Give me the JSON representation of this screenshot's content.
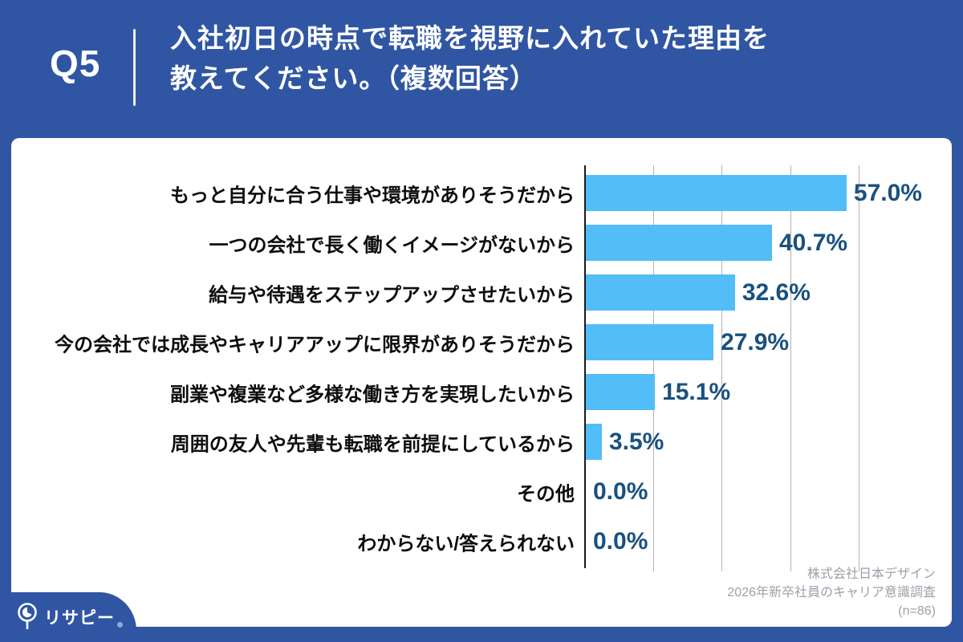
{
  "header": {
    "question_no": "Q5",
    "title_line1": "入社初日の時点で転職を視野に入れていた理由を",
    "title_line2": "教えてください。（複数回答）"
  },
  "chart_data": {
    "type": "bar",
    "orientation": "horizontal",
    "title": "入社初日の時点で転職を視野に入れていた理由を教えてください。（複数回答）",
    "categories": [
      "もっと自分に合う仕事や環境がありそうだから",
      "一つの会社で長く働くイメージがないから",
      "給与や待遇をステップアップさせたいから",
      "今の会社では成長やキャリアアップに限界がありそうだから",
      "副業や複業など多様な働き方を実現したいから",
      "周囲の友人や先輩も転職を前提にしているから",
      "その他",
      "わからない/答えられない"
    ],
    "values": [
      57.0,
      40.7,
      32.6,
      27.9,
      15.1,
      3.5,
      0.0,
      0.0
    ],
    "value_labels": [
      "57.0%",
      "40.7%",
      "32.6%",
      "27.9%",
      "15.1%",
      "3.5%",
      "0.0%",
      "0.0%"
    ],
    "xlim": [
      0,
      74
    ],
    "gridlines_pct": [
      15,
      30,
      45,
      60
    ],
    "grid": "vertical-only",
    "legend": "none"
  },
  "source": {
    "line1": "株式会社日本デザイン",
    "line2": "2026年新卒社員のキャリア意識調査",
    "line3": "(n=86)"
  },
  "logo": {
    "text": "リサピー"
  },
  "colors": {
    "page_blue": "#3056A3",
    "bar_blue": "#52BDF7",
    "value_navy": "#19517F",
    "category_text": "#0d0d0d",
    "source_gray": "#9BA1A9",
    "card_white": "#ffffff"
  }
}
